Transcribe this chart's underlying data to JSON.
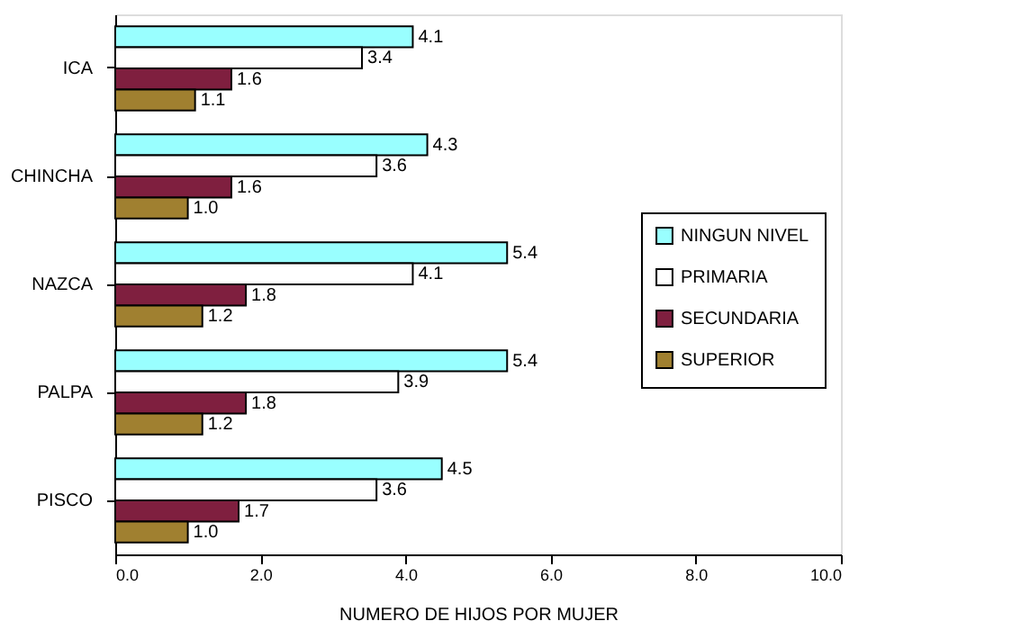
{
  "chart_data": {
    "type": "bar",
    "orientation": "horizontal",
    "categories": [
      "ICA",
      "CHINCHA",
      "NAZCA",
      "PALPA",
      "PISCO"
    ],
    "xlabel": "NUMERO DE HIJOS POR MUJER",
    "xlim": [
      0,
      10
    ],
    "xticks": [
      {
        "value": 0,
        "label": "0.0"
      },
      {
        "value": 2,
        "label": "2.0"
      },
      {
        "value": 4,
        "label": "4.0"
      },
      {
        "value": 6,
        "label": "6.0"
      },
      {
        "value": 8,
        "label": "8.0"
      },
      {
        "value": 10,
        "label": "10.0"
      }
    ],
    "grid": false,
    "legend": "right",
    "series": [
      {
        "name": "NINGUN NIVEL",
        "color": "#99ffff",
        "values": [
          4.1,
          4.3,
          5.4,
          5.4,
          4.5
        ],
        "value_labels": [
          "4.1",
          "4.3",
          "5.4",
          "5.4",
          "4.5"
        ]
      },
      {
        "name": "PRIMARIA",
        "color": "#ffffff",
        "values": [
          3.4,
          3.6,
          4.1,
          3.9,
          3.6
        ],
        "value_labels": [
          "3.4",
          "3.6",
          "4.1",
          "3.9",
          "3.6"
        ]
      },
      {
        "name": "SECUNDARIA",
        "color": "#7f1f3f",
        "values": [
          1.6,
          1.6,
          1.8,
          1.8,
          1.7
        ],
        "value_labels": [
          "1.6",
          "1.6",
          "1.8",
          "1.8",
          "1.7"
        ]
      },
      {
        "name": "SUPERIOR",
        "color": "#a08030",
        "values": [
          1.1,
          1.0,
          1.2,
          1.2,
          1.0
        ],
        "value_labels": [
          "1.1",
          "1.0",
          "1.2",
          "1.2",
          "1.0"
        ]
      }
    ]
  }
}
